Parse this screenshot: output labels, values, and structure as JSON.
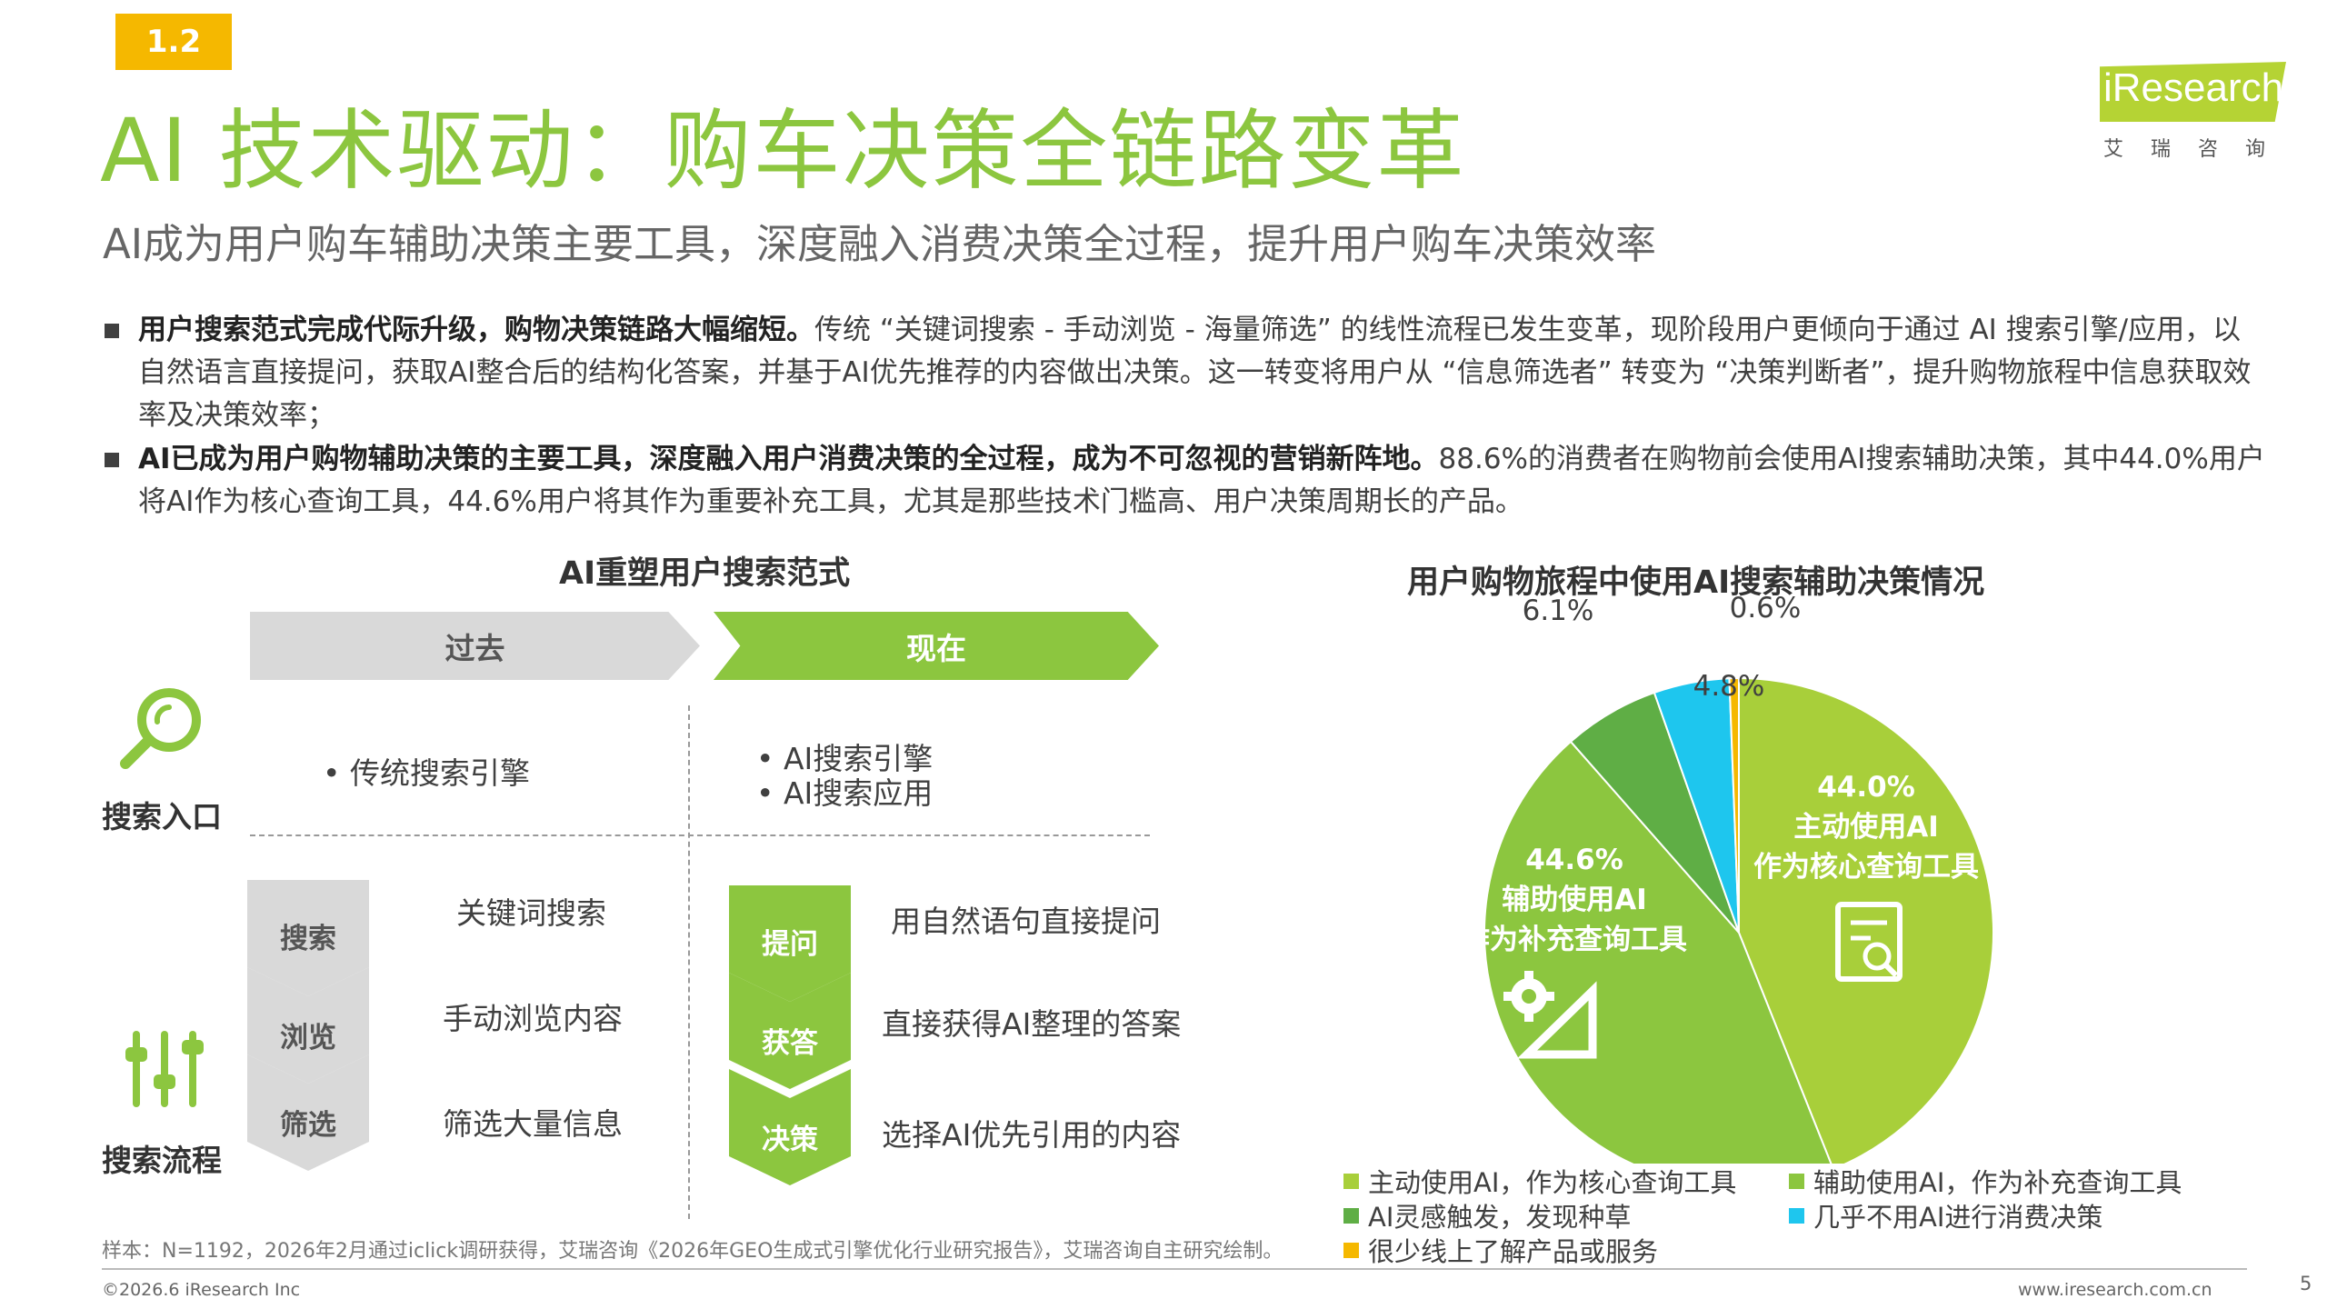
{
  "section_badge": "1.2",
  "title": "AI 技术驱动：购车决策全链路变革",
  "subtitle": "AI成为用户购车辅助决策主要工具，深度融入消费决策全过程，提升用户购车决策效率",
  "logo": {
    "text": "iResearch",
    "sub": "艾瑞咨询"
  },
  "bullets": [
    {
      "bold": "用户搜索范式完成代际升级，购物决策链路大幅缩短。",
      "text": "传统 “关键词搜索 - 手动浏览 - 海量筛选” 的线性流程已发生变革，现阶段用户更倾向于通过 AI 搜索引擎/应用，以自然语言直接提问，获取AI整合后的结构化答案，并基于AI优先推荐的内容做出决策。这一转变将用户从 “信息筛选者” 转变为 “决策判断者”，提升购物旅程中信息获取效率及决策效率；"
    },
    {
      "bold": "AI已成为用户购物辅助决策的主要工具，深度融入用户消费决策的全过程，成为不可忽视的营销新阵地。",
      "text": "88.6%的消费者在购物前会使用AI搜索辅助决策，其中44.0%用户将AI作为核心查询工具，44.6%用户将其作为重要补充工具，尤其是那些技术门槛高、用户决策周期长的产品。"
    }
  ],
  "left_panel": {
    "title": "AI重塑用户搜索范式",
    "past_label": "过去",
    "now_label": "现在",
    "search_entry_label": "搜索入口",
    "search_flow_label": "搜索流程",
    "past_entry": [
      "传统搜索引擎"
    ],
    "now_entry": [
      "AI搜索引擎",
      "AI搜索应用"
    ],
    "past_steps": [
      {
        "step": "搜索",
        "desc": "关键词搜索"
      },
      {
        "step": "浏览",
        "desc": "手动浏览内容"
      },
      {
        "step": "筛选",
        "desc": "筛选大量信息"
      }
    ],
    "now_steps": [
      {
        "step": "提问",
        "desc": "用自然语句直接提问"
      },
      {
        "step": "获答",
        "desc": "直接获得AI整理的答案"
      },
      {
        "step": "决策",
        "desc": "选择AI优先引用的内容"
      }
    ]
  },
  "chart_data": {
    "type": "pie",
    "title": "用户购物旅程中使用AI搜索辅助决策情况",
    "slices": [
      {
        "name": "主动使用AI，作为核心查询工具",
        "value": 44.0,
        "label": "44.0%",
        "inner_label": [
          "44.0%",
          "主动使用AI",
          "作为核心查询工具"
        ],
        "color": "#a8cf3a"
      },
      {
        "name": "辅助使用AI，作为补充查询工具",
        "value": 44.6,
        "label": "44.6%",
        "inner_label": [
          "44.6%",
          "辅助使用AI",
          "作为补充查询工具"
        ],
        "color": "#8cc63f"
      },
      {
        "name": "AI灵感触发，发现种草",
        "value": 6.1,
        "label": "6.1%",
        "color": "#5fae45"
      },
      {
        "name": "几乎不用AI进行消费决策",
        "value": 4.8,
        "label": "4.8%",
        "color": "#1ec6ee"
      },
      {
        "name": "很少线上了解产品或服务",
        "value": 0.6,
        "label": "0.6%",
        "color": "#f5b800"
      }
    ],
    "legend_position": "bottom"
  },
  "source_note": "样本：N=1192，2026年2月通过iclick调研获得，艾瑞咨询《2026年GEO生成式引擎优化行业研究报告》，艾瑞咨询自主研究绘制。",
  "footer": {
    "copyright": "©2026.6 iResearch Inc",
    "website": "www.iresearch.com.cn",
    "page": "5"
  }
}
